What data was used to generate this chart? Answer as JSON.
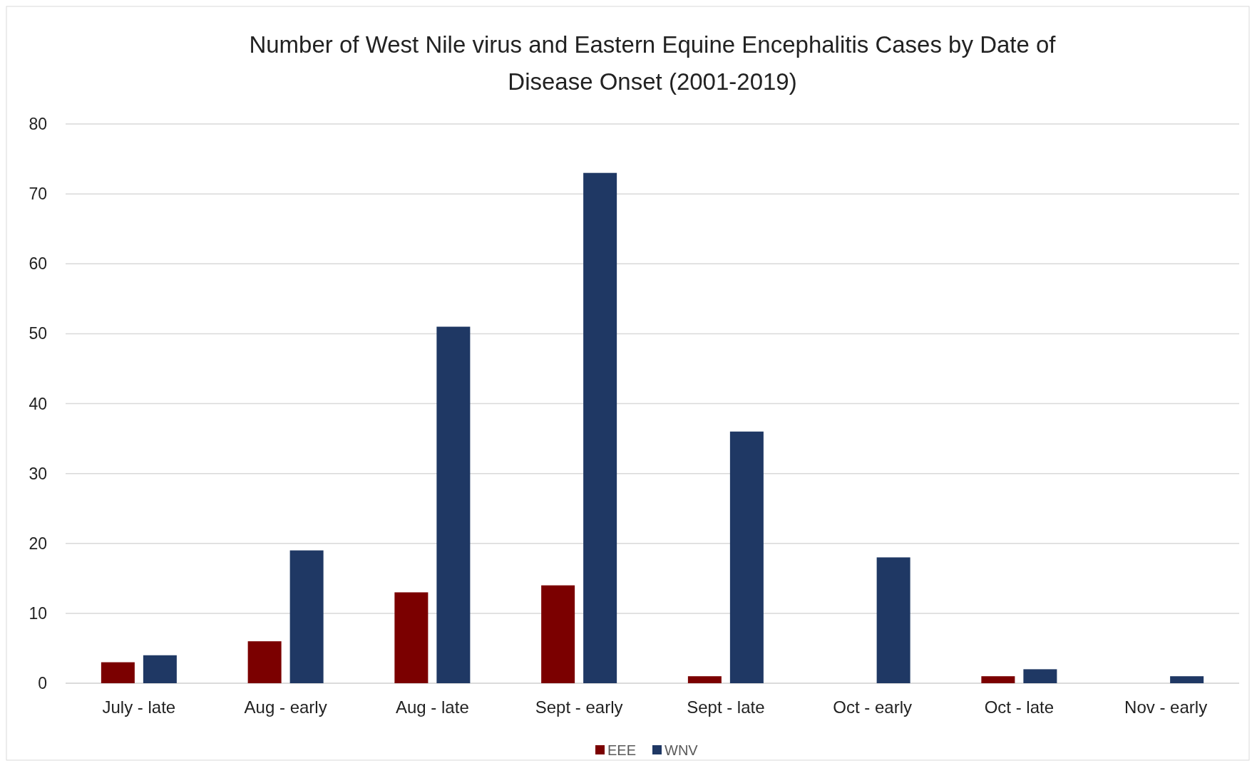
{
  "chart_data": {
    "type": "bar",
    "title": "Number of West Nile virus and Eastern Equine Encephalitis Cases by Date of Disease Onset (2001-2019)",
    "categories": [
      "July - late",
      "Aug - early",
      "Aug - late",
      "Sept - early",
      "Sept - late",
      "Oct - early",
      "Oct - late",
      "Nov - early"
    ],
    "series": [
      {
        "name": "EEE",
        "color": "#7b0000",
        "values": [
          3,
          6,
          13,
          14,
          1,
          0,
          1,
          0
        ]
      },
      {
        "name": "WNV",
        "color": "#1f3864",
        "values": [
          4,
          19,
          51,
          73,
          36,
          18,
          2,
          1
        ]
      }
    ],
    "ylim": [
      0,
      80
    ],
    "yticks": [
      0,
      10,
      20,
      30,
      40,
      50,
      60,
      70,
      80
    ],
    "grid": "y",
    "legend": "bottom"
  }
}
